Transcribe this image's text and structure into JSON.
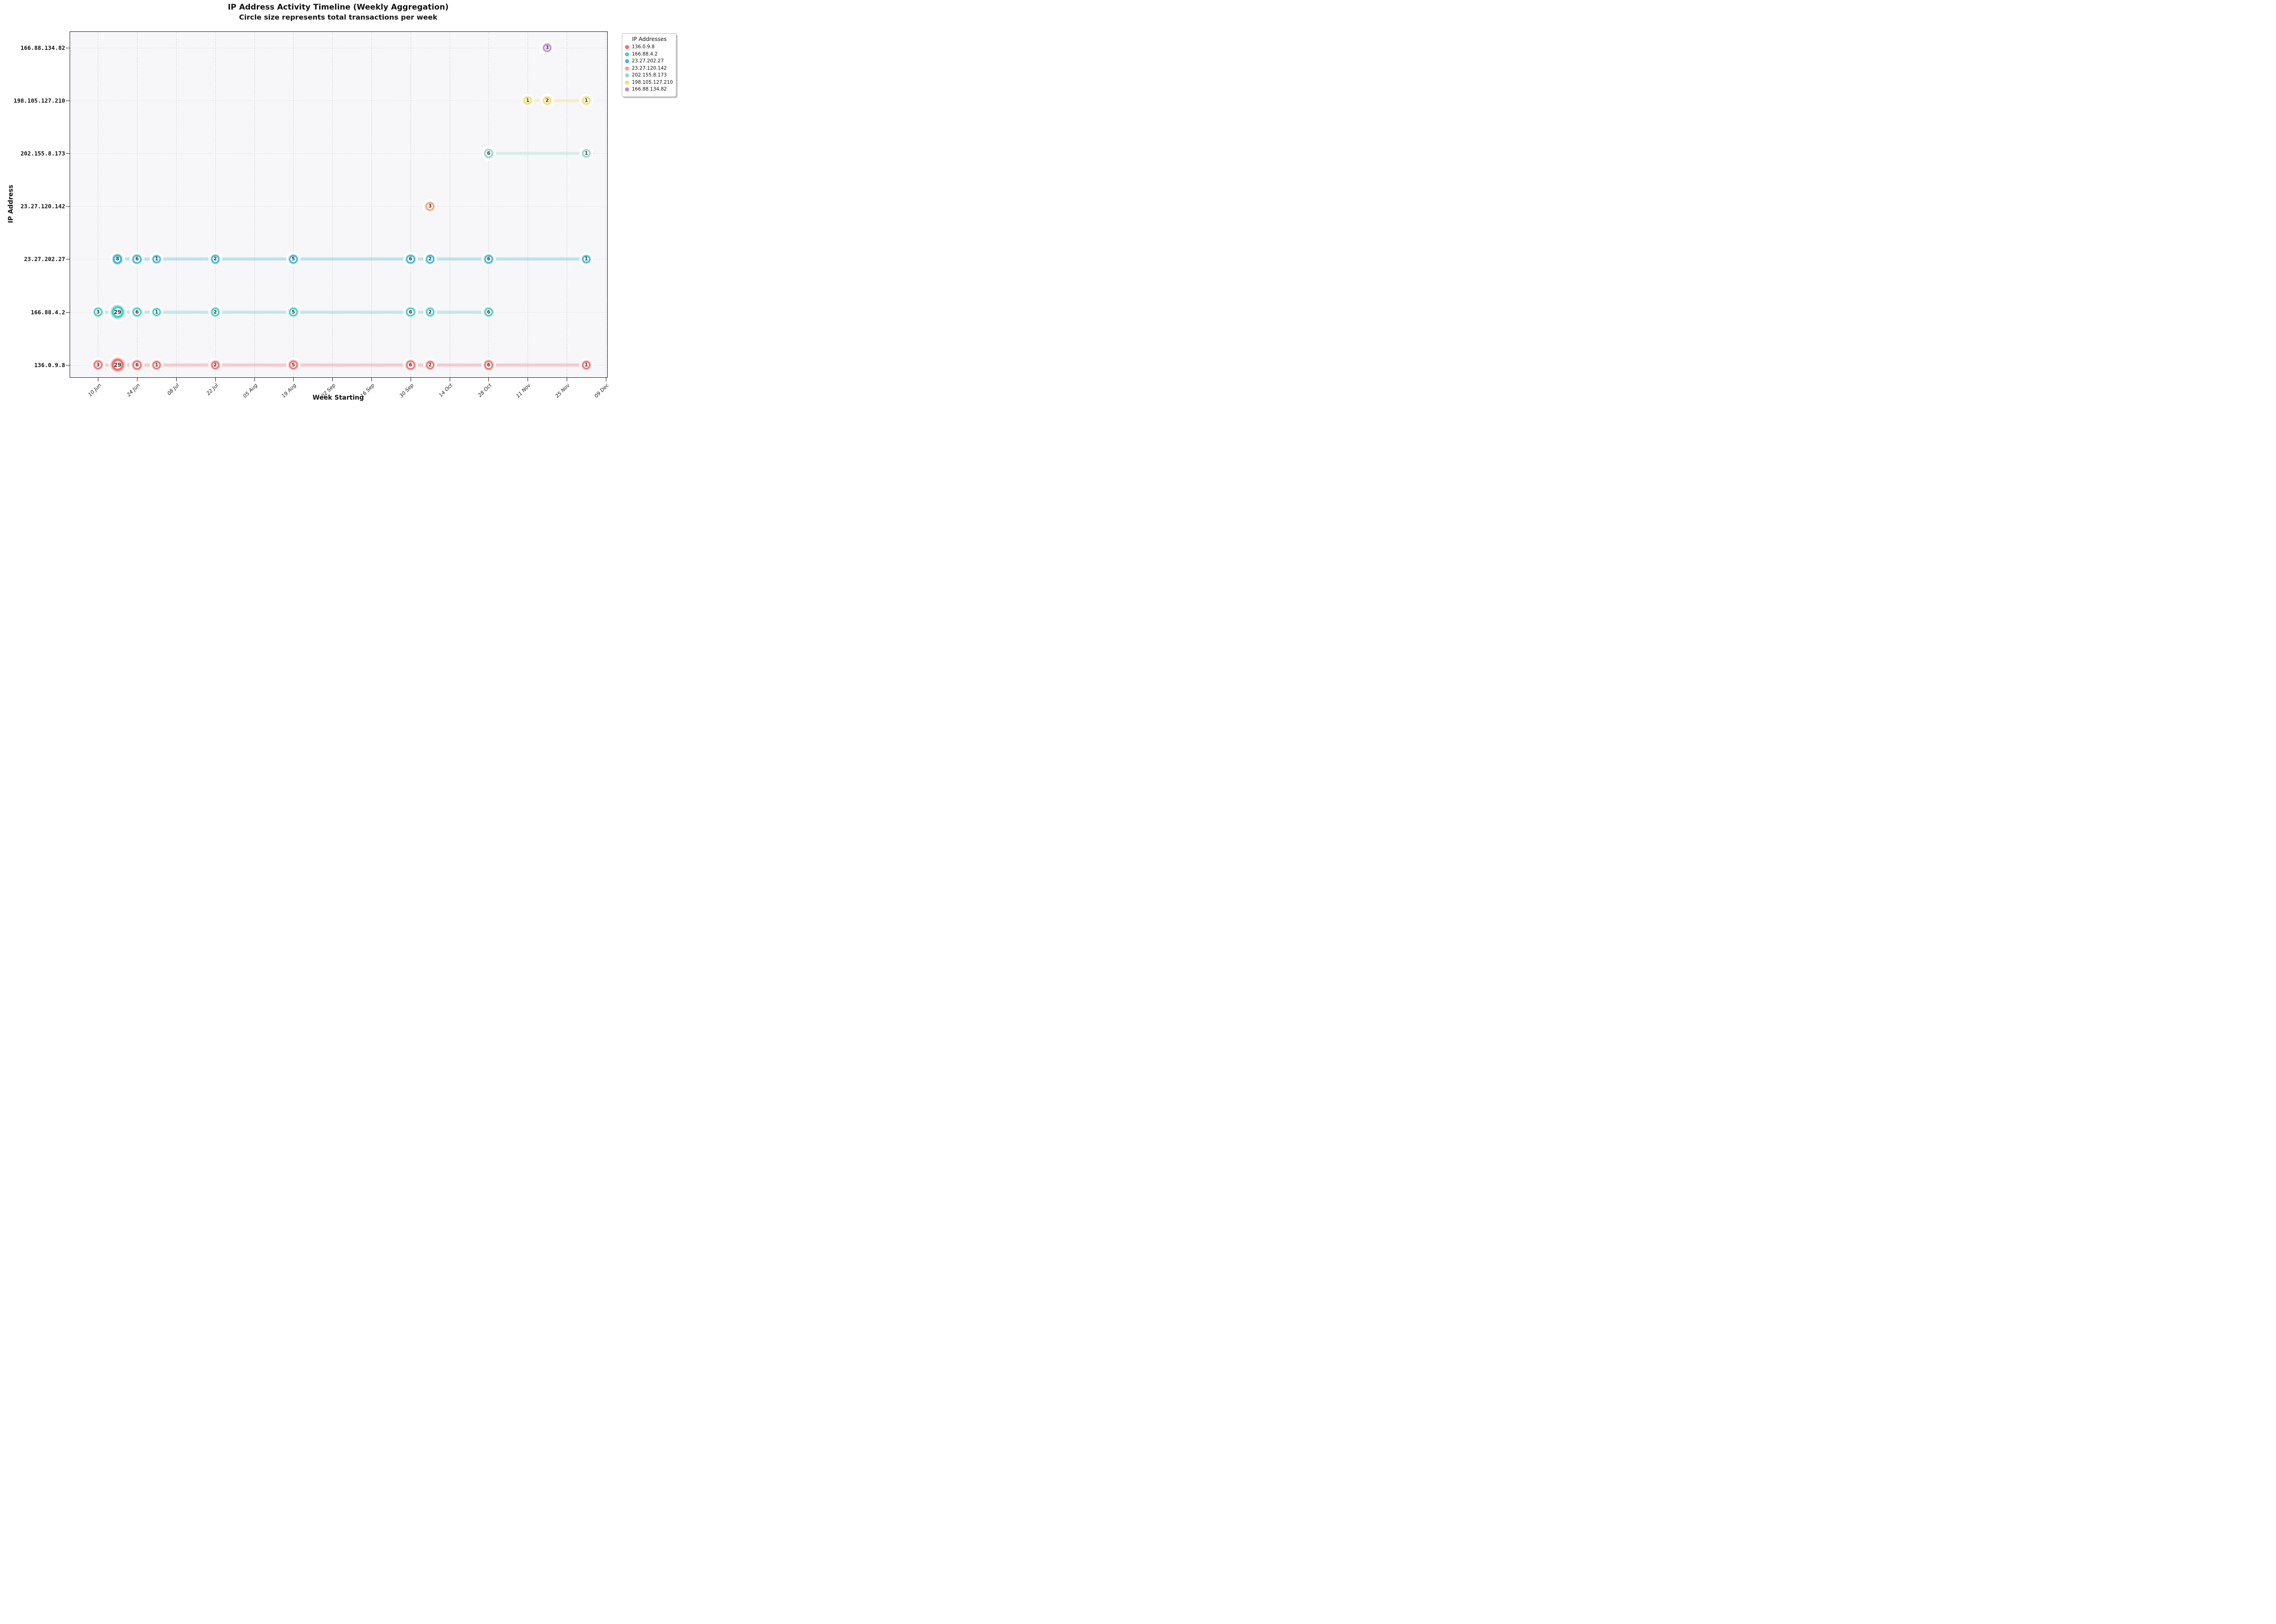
{
  "figure": {
    "title": "IP Address Activity Timeline (Weekly Aggregation)",
    "subtitle": "Circle size represents total transactions per week"
  },
  "chart_data": {
    "type": "scatter",
    "title": "IP Address Activity Timeline (Weekly Aggregation)",
    "subtitle": "Circle size represents total transactions per week",
    "xlabel": "Week Starting",
    "ylabel": "IP Address",
    "legend_title": "IP Addresses",
    "legend_position": "upper right, outside plot",
    "grid": {
      "vertical": "dashed",
      "horizontal": "dotted"
    },
    "x_domain_days": {
      "min": -10,
      "max": 182.5,
      "origin": "10 Jun"
    },
    "x_ticks": [
      {
        "label": "10 Jun",
        "day": 0
      },
      {
        "label": "24 Jun",
        "day": 14
      },
      {
        "label": "08 Jul",
        "day": 28
      },
      {
        "label": "22 Jul",
        "day": 42
      },
      {
        "label": "05 Aug",
        "day": 56
      },
      {
        "label": "19 Aug",
        "day": 70
      },
      {
        "label": "02 Sep",
        "day": 84
      },
      {
        "label": "16 Sep",
        "day": 98
      },
      {
        "label": "30 Sep",
        "day": 112
      },
      {
        "label": "14 Oct",
        "day": 126
      },
      {
        "label": "28 Oct",
        "day": 140
      },
      {
        "label": "11 Nov",
        "day": 154
      },
      {
        "label": "25 Nov",
        "day": 168
      },
      {
        "label": "09 Dec",
        "day": 182
      }
    ],
    "y_categories_top_to_bottom": [
      "166.88.134.82",
      "198.105.127.210",
      "202.155.8.173",
      "23.27.120.142",
      "23.27.202.27",
      "166.88.4.2",
      "136.0.9.8"
    ],
    "series": [
      {
        "name": "136.0.9.8",
        "color": "#FF6B6B",
        "points": [
          {
            "week": "10 Jun",
            "day": 0,
            "transactions": 3
          },
          {
            "week": "17 Jun",
            "day": 7,
            "transactions": 29
          },
          {
            "week": "24 Jun",
            "day": 14,
            "transactions": 6
          },
          {
            "week": "01 Jul",
            "day": 21,
            "transactions": 1
          },
          {
            "week": "22 Jul",
            "day": 42,
            "transactions": 2
          },
          {
            "week": "19 Aug",
            "day": 70,
            "transactions": 5
          },
          {
            "week": "30 Sep",
            "day": 112,
            "transactions": 6
          },
          {
            "week": "07 Oct",
            "day": 119,
            "transactions": 2
          },
          {
            "week": "28 Oct",
            "day": 140,
            "transactions": 6
          },
          {
            "week": "02 Dec",
            "day": 175,
            "transactions": 1
          }
        ]
      },
      {
        "name": "166.88.4.2",
        "color": "#4ECDC4",
        "points": [
          {
            "week": "10 Jun",
            "day": 0,
            "transactions": 3
          },
          {
            "week": "17 Jun",
            "day": 7,
            "transactions": 29
          },
          {
            "week": "24 Jun",
            "day": 14,
            "transactions": 6
          },
          {
            "week": "01 Jul",
            "day": 21,
            "transactions": 1
          },
          {
            "week": "22 Jul",
            "day": 42,
            "transactions": 2
          },
          {
            "week": "19 Aug",
            "day": 70,
            "transactions": 5
          },
          {
            "week": "30 Sep",
            "day": 112,
            "transactions": 6
          },
          {
            "week": "07 Oct",
            "day": 119,
            "transactions": 2
          },
          {
            "week": "28 Oct",
            "day": 140,
            "transactions": 6
          }
        ]
      },
      {
        "name": "23.27.202.27",
        "color": "#45B7D1",
        "points": [
          {
            "week": "17 Jun",
            "day": 7,
            "transactions": 8
          },
          {
            "week": "24 Jun",
            "day": 14,
            "transactions": 6
          },
          {
            "week": "01 Jul",
            "day": 21,
            "transactions": 1
          },
          {
            "week": "22 Jul",
            "day": 42,
            "transactions": 2
          },
          {
            "week": "19 Aug",
            "day": 70,
            "transactions": 5
          },
          {
            "week": "30 Sep",
            "day": 112,
            "transactions": 6
          },
          {
            "week": "07 Oct",
            "day": 119,
            "transactions": 2
          },
          {
            "week": "28 Oct",
            "day": 140,
            "transactions": 6
          },
          {
            "week": "02 Dec",
            "day": 175,
            "transactions": 1
          }
        ]
      },
      {
        "name": "23.27.120.142",
        "color": "#FFA07A",
        "points": [
          {
            "week": "07 Oct",
            "day": 119,
            "transactions": 3
          }
        ]
      },
      {
        "name": "202.155.8.173",
        "color": "#98D8C8",
        "points": [
          {
            "week": "28 Oct",
            "day": 140,
            "transactions": 6
          },
          {
            "week": "02 Dec",
            "day": 175,
            "transactions": 1
          }
        ]
      },
      {
        "name": "198.105.127.210",
        "color": "#F7DC6F",
        "points": [
          {
            "week": "11 Nov",
            "day": 154,
            "transactions": 1
          },
          {
            "week": "18 Nov",
            "day": 161,
            "transactions": 2
          },
          {
            "week": "02 Dec",
            "day": 175,
            "transactions": 1
          }
        ]
      },
      {
        "name": "166.88.134.82",
        "color": "#BB8FCE",
        "points": [
          {
            "week": "18 Nov",
            "day": 161,
            "transactions": 3
          }
        ]
      }
    ]
  },
  "colors": {
    "plot_background": "#F7F7F9",
    "frame": "#1A1A1A",
    "vertical_grid": "#D5D5D9",
    "horizontal_grid": "#E2E2E6",
    "bubble_number": "#3A3A3A"
  }
}
